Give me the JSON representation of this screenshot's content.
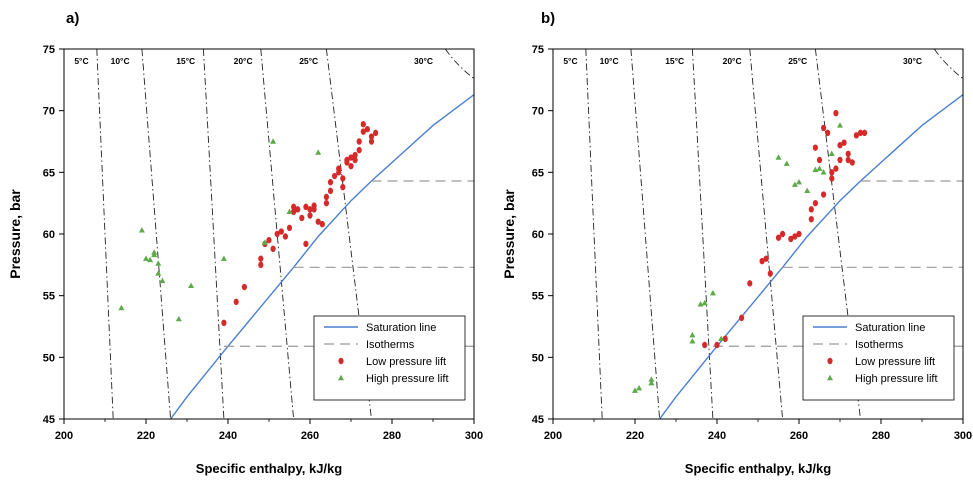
{
  "chart_data": [
    {
      "type": "scatter",
      "panel_label": "a)",
      "xlabel": "Specific enthalpy, kJ/kg",
      "ylabel": "Pressure, bar",
      "xlim": [
        200,
        300
      ],
      "ylim": [
        45,
        75
      ],
      "xticks": [
        "200",
        "220",
        "240",
        "260",
        "280",
        "300"
      ],
      "yticks": [
        "45",
        "50",
        "55",
        "60",
        "65",
        "70",
        "75"
      ],
      "grid": false,
      "legend_position": "bottom-right",
      "isotherm_labels": [
        "5°C",
        "10°C",
        "15°C",
        "20°C",
        "25°C",
        "30°C"
      ],
      "series": [
        {
          "name": "Saturation line",
          "kind": "line",
          "color": "#4a7fcf",
          "x": [
            226,
            230,
            240,
            250,
            256,
            262,
            270,
            275,
            280,
            290,
            300
          ],
          "y": [
            45,
            46.8,
            50.9,
            54.9,
            57.3,
            59.8,
            62.7,
            64.3,
            65.8,
            68.8,
            71.3
          ]
        },
        {
          "name": "Isotherms",
          "kind": "line",
          "color": "#9a9a9a",
          "x": [
            239,
            300
          ],
          "y": [
            50.9,
            50.9
          ]
        },
        {
          "name": "Isotherms",
          "kind": "line",
          "color": "#9a9a9a",
          "x": [
            256,
            300
          ],
          "y": [
            57.3,
            57.3
          ]
        },
        {
          "name": "Isotherms",
          "kind": "line",
          "color": "#9a9a9a",
          "x": [
            275,
            300
          ],
          "y": [
            64.3,
            64.3
          ]
        },
        {
          "name": "Low pressure lift",
          "kind": "marker",
          "color": "#d42a2a",
          "x": [
            239,
            242,
            244,
            248,
            248,
            249,
            250,
            251,
            252,
            253,
            254,
            255,
            256,
            256,
            257,
            258,
            259,
            259,
            260,
            260,
            261,
            261,
            262,
            263,
            264,
            264,
            265,
            265,
            266,
            267,
            267,
            268,
            268,
            269,
            269,
            270,
            270,
            271,
            271,
            272,
            272,
            273,
            273,
            274,
            275,
            275,
            276
          ],
          "y": [
            52.8,
            54.5,
            55.7,
            57.5,
            58,
            59.2,
            59.5,
            58.8,
            60,
            60.2,
            59.8,
            60.5,
            61.8,
            62.2,
            62,
            61.3,
            59.2,
            62.2,
            62,
            61.5,
            62,
            62.3,
            61,
            60.8,
            62.5,
            63,
            63.5,
            64.2,
            64.7,
            65,
            65.3,
            63.8,
            64.5,
            65.8,
            66,
            65.5,
            66.2,
            66.4,
            66,
            66.8,
            67.5,
            68.3,
            68.9,
            68.5,
            67.9,
            67.5,
            68.2
          ]
        },
        {
          "name": "High pressure lift",
          "kind": "marker",
          "color": "#5caa4a",
          "x": [
            214,
            219,
            220,
            221,
            222,
            222,
            223,
            223,
            224,
            228,
            231,
            239,
            249,
            251,
            255,
            262
          ],
          "y": [
            54,
            60.3,
            58,
            57.9,
            58.3,
            58.5,
            57.6,
            56.8,
            56.2,
            53.1,
            55.8,
            58,
            59.3,
            67.5,
            61.8,
            66.6
          ]
        }
      ]
    },
    {
      "type": "scatter",
      "panel_label": "b)",
      "xlabel": "Specific enthalpy, kJ/kg",
      "ylabel": "Pressure, bar",
      "xlim": [
        200,
        300
      ],
      "ylim": [
        45,
        75
      ],
      "xticks": [
        "200",
        "220",
        "240",
        "260",
        "280",
        "300"
      ],
      "yticks": [
        "45",
        "50",
        "55",
        "60",
        "65",
        "70",
        "75"
      ],
      "grid": false,
      "legend_position": "bottom-right",
      "isotherm_labels": [
        "5°C",
        "10°C",
        "15°C",
        "20°C",
        "25°C",
        "30°C"
      ],
      "series": [
        {
          "name": "Saturation line",
          "kind": "line",
          "color": "#4a7fcf",
          "x": [
            226,
            230,
            240,
            250,
            256,
            262,
            270,
            275,
            280,
            290,
            300
          ],
          "y": [
            45,
            46.8,
            50.9,
            54.9,
            57.3,
            59.8,
            62.7,
            64.3,
            65.8,
            68.8,
            71.3
          ]
        },
        {
          "name": "Isotherms",
          "kind": "line",
          "color": "#9a9a9a",
          "x": [
            239,
            300
          ],
          "y": [
            50.9,
            50.9
          ]
        },
        {
          "name": "Isotherms",
          "kind": "line",
          "color": "#9a9a9a",
          "x": [
            256,
            300
          ],
          "y": [
            57.3,
            57.3
          ]
        },
        {
          "name": "Isotherms",
          "kind": "line",
          "color": "#9a9a9a",
          "x": [
            275,
            300
          ],
          "y": [
            64.3,
            64.3
          ]
        },
        {
          "name": "Low pressure lift",
          "kind": "marker",
          "color": "#d42a2a",
          "x": [
            237,
            240,
            242,
            246,
            248,
            251,
            252,
            253,
            255,
            256,
            258,
            259,
            260,
            263,
            263,
            264,
            264,
            265,
            266,
            266,
            267,
            268,
            268,
            269,
            269,
            270,
            270,
            271,
            272,
            272,
            273,
            274,
            275,
            276
          ],
          "y": [
            51,
            51,
            51.5,
            53.2,
            56,
            57.8,
            58,
            56.8,
            59.7,
            60,
            59.6,
            59.8,
            60,
            61.2,
            62,
            62.5,
            67,
            66,
            63.2,
            68.6,
            68.2,
            65,
            64.5,
            65.3,
            69.8,
            67.2,
            66,
            67.4,
            66.5,
            66,
            65.8,
            68,
            68.2,
            68.2
          ]
        },
        {
          "name": "High pressure lift",
          "kind": "marker",
          "color": "#5caa4a",
          "x": [
            220,
            221,
            224,
            224,
            234,
            234,
            236,
            237,
            239,
            241,
            255,
            257,
            259,
            260,
            262,
            264,
            265,
            266,
            268,
            270
          ],
          "y": [
            47.3,
            47.5,
            47.9,
            48.2,
            51.8,
            51.3,
            54.3,
            54.4,
            55.2,
            51.5,
            66.2,
            65.7,
            64,
            64.2,
            63.5,
            65.2,
            65.3,
            65,
            66.5,
            68.8
          ]
        }
      ]
    }
  ]
}
